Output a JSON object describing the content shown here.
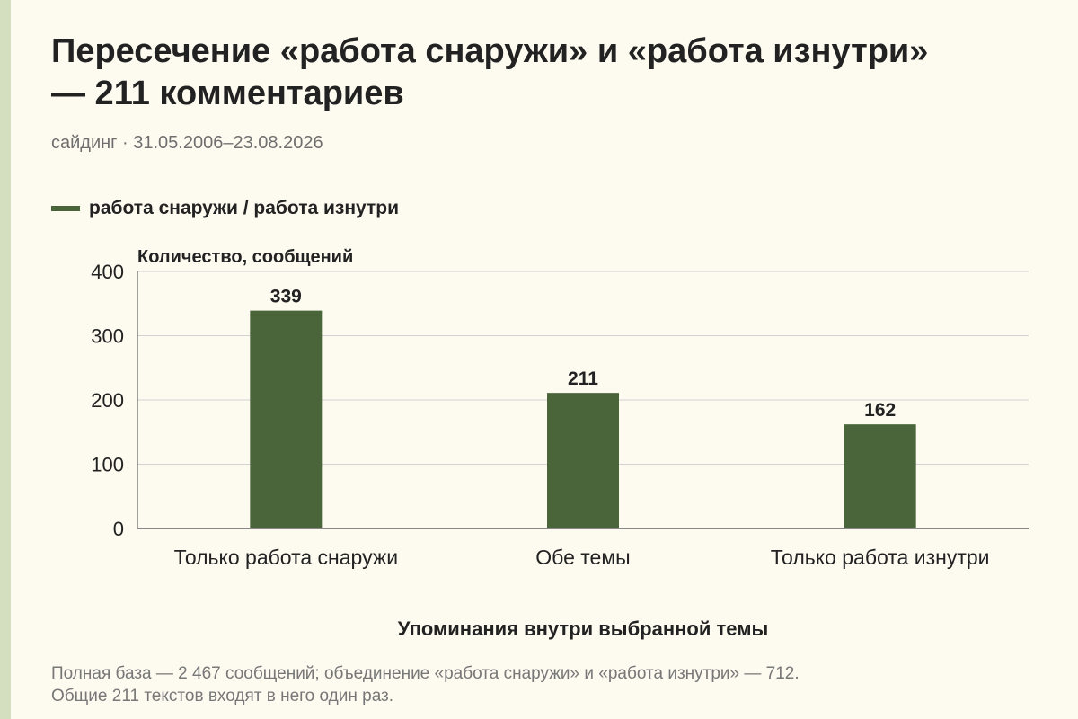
{
  "title": "Пересечение «работа снаружи» и «работа изнутри» — 211 комментариев",
  "subtitle": "сайдинг · 31.05.2006–23.08.2026",
  "legend": {
    "label": "работа снаружи / работа изнутри"
  },
  "footnote": {
    "line1": "Полная база — 2 467 сообщений; объединение «работа снаружи» и «работа изнутри» — 712.",
    "line2": "Общие 211 текстов входят в него один раз."
  },
  "colors": {
    "bar": "#4a653a",
    "accent_stripe": "#d3dfbf",
    "background": "#fdfbf0"
  },
  "chart_data": {
    "type": "bar",
    "categories": [
      "Только работа снаружи",
      "Обе темы",
      "Только работа изнутри"
    ],
    "series": [
      {
        "name": "работа снаружи / работа изнутри",
        "values": [
          339,
          211,
          162
        ]
      }
    ],
    "ylabel": "Количество, сообщений",
    "xlabel": "Упоминания внутри выбранной темы",
    "ylim": [
      0,
      400
    ],
    "yticks": [
      0,
      100,
      200,
      300,
      400
    ],
    "data_labels": [
      "339",
      "211",
      "162"
    ],
    "grid": true,
    "legend_position": "top-left"
  }
}
